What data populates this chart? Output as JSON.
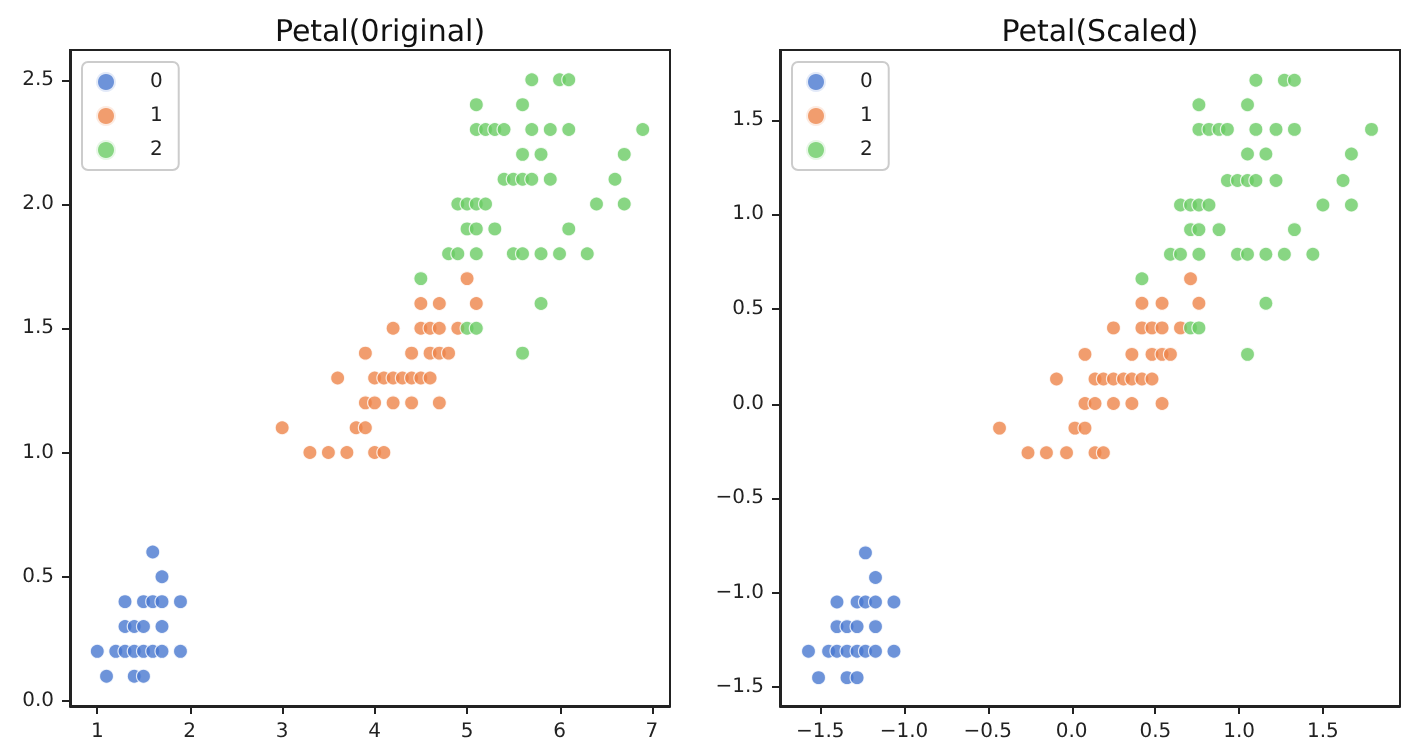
{
  "chart_data": [
    {
      "type": "scatter",
      "title": "Petal(0riginal)",
      "legend": "top left",
      "grid": false,
      "marker": "circle",
      "xlim": [
        0.705,
        7.195
      ],
      "ylim": [
        -0.02,
        2.62
      ],
      "xticks": [
        1,
        2,
        3,
        4,
        5,
        6,
        7
      ],
      "yticks": [
        {
          "value": 0,
          "label": "0.0"
        },
        0.5,
        {
          "value": 1,
          "label": "1.0"
        },
        1.5,
        {
          "value": 2,
          "label": "2.0"
        },
        2.5
      ],
      "series": [
        {
          "name": "0",
          "color": "#4878d0",
          "x": [
            1.0,
            1.1,
            1.2,
            1.3,
            1.3,
            1.3,
            1.4,
            1.4,
            1.4,
            1.5,
            1.5,
            1.5,
            1.5,
            1.6,
            1.6,
            1.6,
            1.7,
            1.7,
            1.7,
            1.7,
            1.9,
            1.9
          ],
          "values": [
            0.2,
            0.1,
            0.2,
            0.2,
            0.3,
            0.4,
            0.1,
            0.2,
            0.3,
            0.1,
            0.2,
            0.3,
            0.4,
            0.2,
            0.4,
            0.6,
            0.2,
            0.3,
            0.4,
            0.5,
            0.2,
            0.4
          ]
        },
        {
          "name": "1",
          "color": "#ee854a",
          "x": [
            3.0,
            3.3,
            3.5,
            3.7,
            4.0,
            4.1,
            3.8,
            3.9,
            3.9,
            4.0,
            4.2,
            4.4,
            4.7,
            3.6,
            4.0,
            4.1,
            4.2,
            4.3,
            4.4,
            4.5,
            4.6,
            3.9,
            4.4,
            4.6,
            4.7,
            4.8,
            4.2,
            4.5,
            4.6,
            4.7,
            4.9,
            4.5,
            4.7,
            5.1,
            5.0
          ],
          "values": [
            1.1,
            1.0,
            1.0,
            1.0,
            1.0,
            1.0,
            1.1,
            1.1,
            1.2,
            1.2,
            1.2,
            1.2,
            1.2,
            1.3,
            1.3,
            1.3,
            1.3,
            1.3,
            1.3,
            1.3,
            1.3,
            1.4,
            1.4,
            1.4,
            1.4,
            1.4,
            1.5,
            1.5,
            1.5,
            1.5,
            1.5,
            1.6,
            1.6,
            1.6,
            1.7
          ]
        },
        {
          "name": "2",
          "color": "#6acc64",
          "x": [
            5.6,
            5.0,
            5.1,
            5.8,
            4.5,
            4.8,
            4.9,
            5.1,
            5.5,
            5.6,
            5.8,
            6.0,
            6.3,
            5.0,
            5.1,
            5.3,
            6.1,
            4.9,
            5.0,
            5.1,
            5.2,
            6.4,
            6.7,
            5.4,
            5.5,
            5.6,
            5.7,
            5.9,
            6.6,
            5.6,
            5.8,
            6.7,
            5.1,
            5.2,
            5.3,
            5.4,
            5.7,
            5.9,
            6.1,
            6.9,
            5.1,
            5.6,
            5.7,
            6.0,
            6.1
          ],
          "values": [
            1.4,
            1.5,
            1.5,
            1.6,
            1.7,
            1.8,
            1.8,
            1.8,
            1.8,
            1.8,
            1.8,
            1.8,
            1.8,
            1.9,
            1.9,
            1.9,
            1.9,
            2.0,
            2.0,
            2.0,
            2.0,
            2.0,
            2.0,
            2.1,
            2.1,
            2.1,
            2.1,
            2.1,
            2.1,
            2.2,
            2.2,
            2.2,
            2.3,
            2.3,
            2.3,
            2.3,
            2.3,
            2.3,
            2.3,
            2.3,
            2.4,
            2.4,
            2.5,
            2.5,
            2.5
          ]
        }
      ]
    },
    {
      "type": "scatter",
      "title": "Petal(Scaled)",
      "legend": "top left",
      "grid": false,
      "marker": "circle",
      "xlim": [
        -1.74,
        1.96
      ],
      "ylim": [
        -1.6,
        1.87
      ],
      "xticks": [
        {
          "value": -1.5,
          "label": "−1.5"
        },
        {
          "value": -1.0,
          "label": "−1.0"
        },
        {
          "value": -0.5,
          "label": "−0.5"
        },
        {
          "value": 0,
          "label": "0.0"
        },
        0.5,
        {
          "value": 1,
          "label": "1.0"
        },
        1.5
      ],
      "yticks": [
        {
          "value": -1.5,
          "label": "−1.5"
        },
        {
          "value": -1.0,
          "label": "−1.0"
        },
        {
          "value": -0.5,
          "label": "−0.5"
        },
        {
          "value": 0,
          "label": "0.0"
        },
        0.5,
        {
          "value": 1,
          "label": "1.0"
        },
        1.5
      ],
      "series": [
        {
          "name": "0",
          "color": "#4878d0",
          "x": [
            -1.57,
            -1.51,
            -1.45,
            -1.4,
            -1.4,
            -1.4,
            -1.34,
            -1.34,
            -1.34,
            -1.28,
            -1.28,
            -1.28,
            -1.28,
            -1.23,
            -1.23,
            -1.23,
            -1.17,
            -1.17,
            -1.17,
            -1.17,
            -1.06,
            -1.06
          ],
          "values": [
            -1.31,
            -1.45,
            -1.31,
            -1.31,
            -1.18,
            -1.05,
            -1.45,
            -1.31,
            -1.18,
            -1.45,
            -1.31,
            -1.18,
            -1.05,
            -1.31,
            -1.05,
            -0.79,
            -1.31,
            -1.18,
            -1.05,
            -0.92,
            -1.31,
            -1.05
          ]
        },
        {
          "name": "1",
          "color": "#ee854a",
          "x": [
            -0.43,
            -0.26,
            -0.15,
            -0.03,
            0.14,
            0.19,
            0.02,
            0.08,
            0.08,
            0.14,
            0.25,
            0.36,
            0.54,
            -0.09,
            0.14,
            0.19,
            0.25,
            0.31,
            0.36,
            0.42,
            0.48,
            0.08,
            0.36,
            0.48,
            0.54,
            0.59,
            0.25,
            0.42,
            0.48,
            0.54,
            0.65,
            0.42,
            0.54,
            0.76,
            0.71
          ],
          "values": [
            -0.13,
            -0.26,
            -0.26,
            -0.26,
            -0.26,
            -0.26,
            -0.13,
            -0.13,
            0.0,
            0.0,
            0.0,
            0.0,
            0.0,
            0.13,
            0.13,
            0.13,
            0.13,
            0.13,
            0.13,
            0.13,
            0.13,
            0.26,
            0.26,
            0.26,
            0.26,
            0.26,
            0.4,
            0.4,
            0.4,
            0.4,
            0.4,
            0.53,
            0.53,
            0.53,
            0.66
          ]
        },
        {
          "name": "2",
          "color": "#6acc64",
          "x": [
            1.05,
            0.71,
            0.76,
            1.16,
            0.42,
            0.59,
            0.65,
            0.76,
            0.99,
            1.05,
            1.16,
            1.27,
            1.44,
            0.71,
            0.76,
            0.88,
            1.33,
            0.65,
            0.71,
            0.76,
            0.82,
            1.5,
            1.67,
            0.93,
            0.99,
            1.05,
            1.1,
            1.22,
            1.62,
            1.05,
            1.16,
            1.67,
            0.76,
            0.82,
            0.88,
            0.93,
            1.1,
            1.22,
            1.33,
            1.79,
            0.76,
            1.05,
            1.1,
            1.27,
            1.33
          ],
          "values": [
            0.26,
            0.4,
            0.4,
            0.53,
            0.66,
            0.79,
            0.79,
            0.79,
            0.79,
            0.79,
            0.79,
            0.79,
            0.79,
            0.92,
            0.92,
            0.92,
            0.92,
            1.05,
            1.05,
            1.05,
            1.05,
            1.05,
            1.05,
            1.18,
            1.18,
            1.18,
            1.18,
            1.18,
            1.18,
            1.32,
            1.32,
            1.32,
            1.45,
            1.45,
            1.45,
            1.45,
            1.45,
            1.45,
            1.45,
            1.45,
            1.58,
            1.58,
            1.71,
            1.71,
            1.71
          ]
        }
      ]
    }
  ]
}
